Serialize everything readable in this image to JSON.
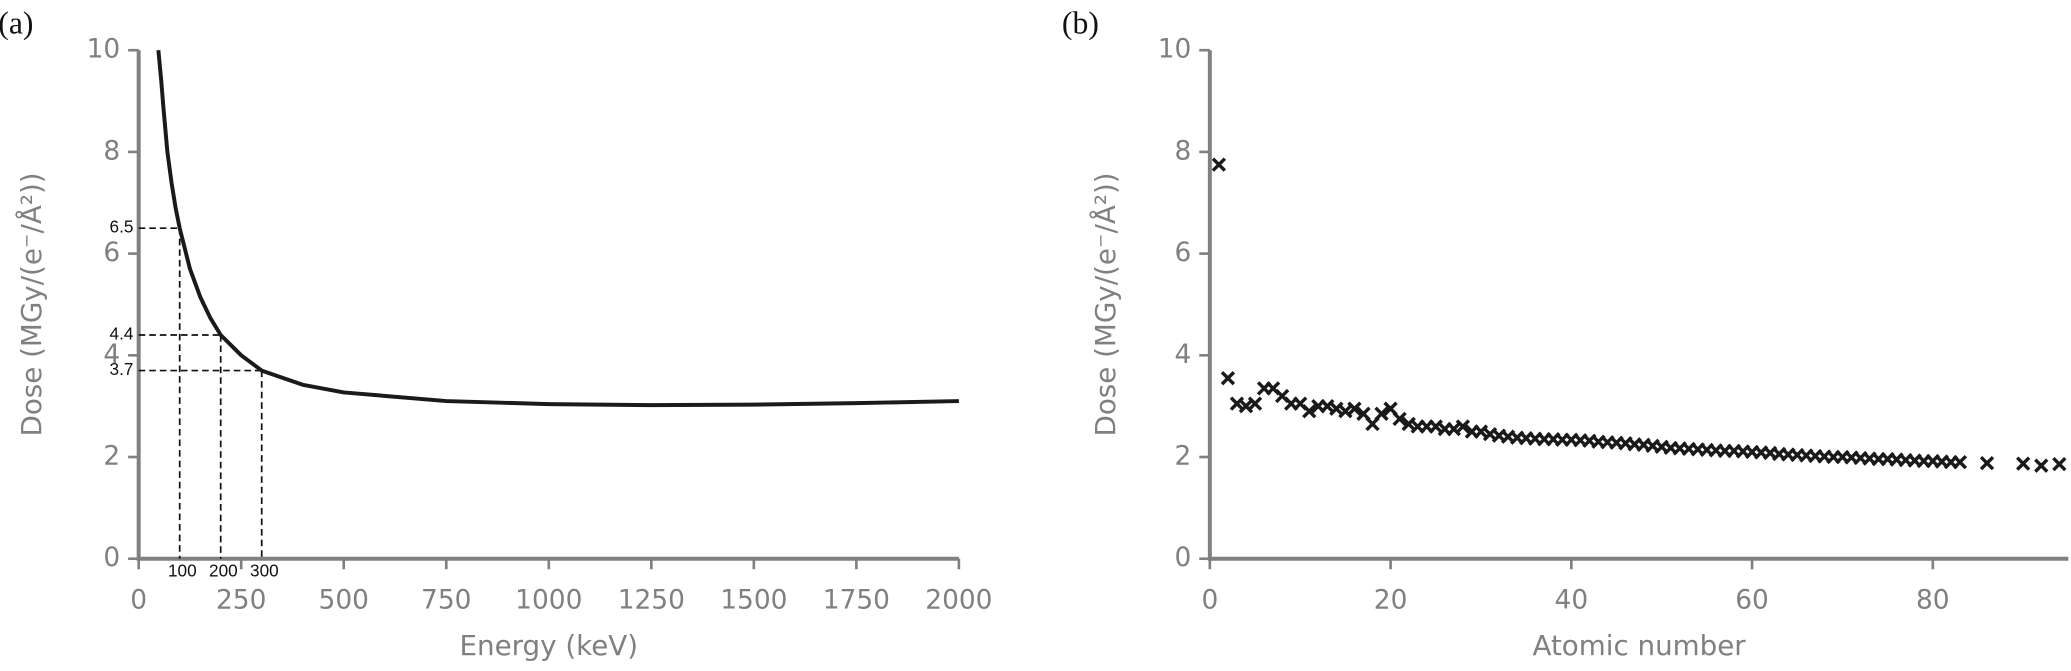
{
  "chart_data": [
    {
      "type": "line",
      "label": "(a)",
      "x_label": "Energy (keV)",
      "y_label": "Dose (MGy/(e⁻/Å²))",
      "x": [
        48,
        55,
        60,
        70,
        80,
        90,
        100,
        125,
        150,
        175,
        200,
        250,
        300,
        400,
        500,
        750,
        1000,
        1250,
        1500,
        1750,
        2000
      ],
      "series": [
        {
          "color": "#1a1a1a",
          "values": [
            10,
            9.4,
            8.9,
            8.0,
            7.4,
            6.9,
            6.5,
            5.7,
            5.15,
            4.73,
            4.4,
            4.0,
            3.7,
            3.42,
            3.27,
            3.1,
            3.04,
            3.02,
            3.03,
            3.06,
            3.1
          ]
        }
      ],
      "annotations": [
        {
          "x": 100,
          "y": 6.5
        },
        {
          "x": 200,
          "y": 4.4
        },
        {
          "x": 300,
          "y": 3.7
        }
      ],
      "xlim": [
        0,
        2000
      ],
      "xticks": [
        0,
        250,
        500,
        750,
        1000,
        1250,
        1500,
        1750,
        2000
      ],
      "ylim": [
        0,
        10
      ],
      "yticks": [
        0,
        2,
        4,
        6,
        8,
        10
      ],
      "axis_color": "#808080"
    },
    {
      "type": "scatter",
      "label": "(b)",
      "x_label": "Atomic number",
      "y_label": "Dose (MGy/(e⁻/Å²))",
      "x": [
        1,
        2,
        3,
        4,
        5,
        6,
        7,
        8,
        9,
        10,
        11,
        12,
        13,
        14,
        15,
        16,
        17,
        18,
        19,
        20,
        21,
        22,
        23,
        24,
        25,
        26,
        27,
        28,
        29,
        30,
        31,
        32,
        33,
        34,
        35,
        36,
        37,
        38,
        39,
        40,
        41,
        42,
        43,
        44,
        45,
        46,
        47,
        48,
        49,
        50,
        51,
        52,
        53,
        54,
        55,
        56,
        57,
        58,
        59,
        60,
        61,
        62,
        63,
        64,
        65,
        66,
        67,
        68,
        69,
        70,
        71,
        72,
        73,
        74,
        75,
        76,
        77,
        78,
        79,
        80,
        81,
        82,
        83,
        86,
        90,
        92,
        94
      ],
      "series": [
        {
          "color": "#1a1a1a",
          "marker": "x",
          "values": [
            7.75,
            3.55,
            3.05,
            3.0,
            3.05,
            3.35,
            3.35,
            3.2,
            3.05,
            3.05,
            2.9,
            3.0,
            3.0,
            2.95,
            2.9,
            2.95,
            2.85,
            2.65,
            2.85,
            2.95,
            2.75,
            2.65,
            2.6,
            2.6,
            2.6,
            2.55,
            2.55,
            2.6,
            2.5,
            2.5,
            2.45,
            2.42,
            2.4,
            2.38,
            2.37,
            2.36,
            2.35,
            2.35,
            2.34,
            2.34,
            2.33,
            2.32,
            2.3,
            2.29,
            2.28,
            2.27,
            2.25,
            2.24,
            2.22,
            2.2,
            2.18,
            2.17,
            2.16,
            2.15,
            2.14,
            2.13,
            2.12,
            2.12,
            2.11,
            2.1,
            2.09,
            2.08,
            2.06,
            2.05,
            2.04,
            2.03,
            2.02,
            2.01,
            2.0,
            2.0,
            1.99,
            1.98,
            1.97,
            1.96,
            1.96,
            1.95,
            1.94,
            1.93,
            1.92,
            1.92,
            1.91,
            1.9,
            1.9,
            1.88,
            1.87,
            1.83,
            1.86
          ]
        }
      ],
      "xlim": [
        0,
        95
      ],
      "xticks": [
        0,
        20,
        40,
        60,
        80
      ],
      "ylim": [
        0,
        10
      ],
      "yticks": [
        0,
        2,
        4,
        6,
        8,
        10
      ],
      "axis_color": "#808080"
    }
  ]
}
